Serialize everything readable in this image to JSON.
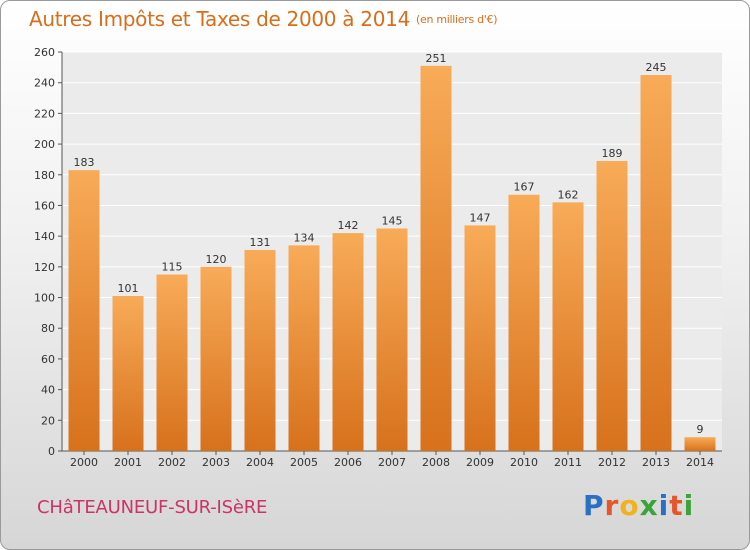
{
  "title": {
    "main": "Autres Impôts et Taxes de 2000 à 2014",
    "unit": "(en milliers d'€)"
  },
  "commune": "CHâTEAUNEUF-SUR-ISèRE",
  "logo": {
    "text": "Proxiti",
    "letters": [
      {
        "ch": "P",
        "color": "#2b6fc4"
      },
      {
        "ch": "r",
        "color": "#e8552a"
      },
      {
        "ch": "o",
        "color": "#f2b21b"
      },
      {
        "ch": "x",
        "color": "#3aa43a"
      },
      {
        "ch": "i",
        "color": "#2b6fc4"
      },
      {
        "ch": "t",
        "color": "#e8552a"
      },
      {
        "ch": "i",
        "color": "#3aa43a"
      }
    ]
  },
  "colors": {
    "bar_light": "#f8ab58",
    "bar_dark": "#d7711c",
    "title": "#d96e1a",
    "commune": "#cc3366"
  },
  "chart_data": {
    "type": "bar",
    "categories": [
      "2000",
      "2001",
      "2002",
      "2003",
      "2004",
      "2005",
      "2006",
      "2007",
      "2008",
      "2009",
      "2010",
      "2011",
      "2012",
      "2013",
      "2014"
    ],
    "values": [
      183,
      101,
      115,
      120,
      131,
      134,
      142,
      145,
      251,
      147,
      167,
      162,
      189,
      245,
      9
    ],
    "data_labels": [
      "183",
      "101",
      "115",
      "120",
      "131",
      "134",
      "142",
      "145",
      "251",
      "147",
      "167",
      "162",
      "189",
      "245",
      "9"
    ],
    "y_ticks": [
      0,
      20,
      40,
      60,
      80,
      100,
      120,
      140,
      160,
      180,
      200,
      220,
      240,
      260
    ],
    "ylim": [
      0,
      260
    ],
    "grid": true,
    "legend": "none"
  }
}
